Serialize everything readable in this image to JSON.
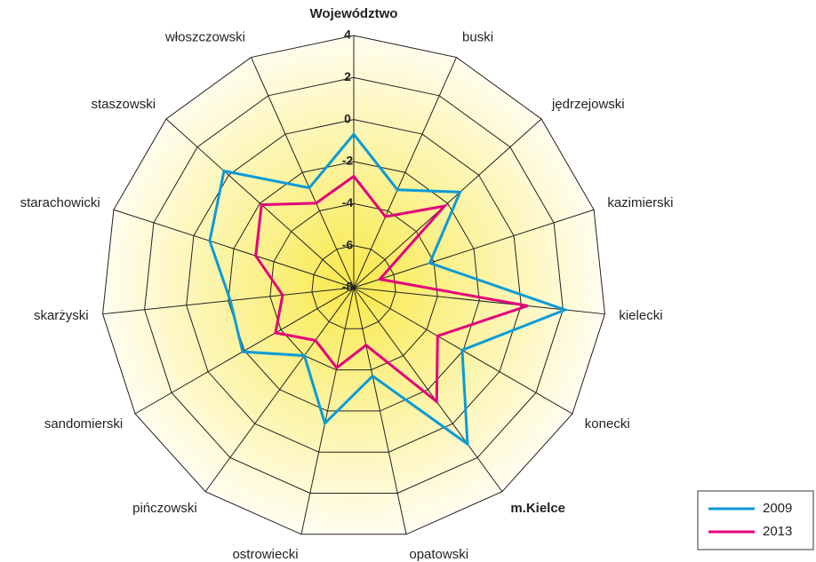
{
  "chart_data": {
    "type": "radar",
    "categories": [
      "Województwo",
      "buski",
      "jędrzejowski",
      "kazimierski",
      "kielecki",
      "konecki",
      "m.Kielce",
      "opatowski",
      "ostrowiecki",
      "pińczowski",
      "sandomierski",
      "skarżyski",
      "starachowicki",
      "staszowski",
      "włoszczowski"
    ],
    "series": [
      {
        "name": "2009",
        "color": "#0b9bd7",
        "values": [
          -0.7,
          -2.9,
          -1.2,
          -4.2,
          2.1,
          -2.05,
          1.2,
          -3.7,
          -1.4,
          -4.0,
          -1.9,
          -2.1,
          -0.8,
          0.3,
          -2.8
        ]
      },
      {
        "name": "2013",
        "color": "#e4007c",
        "values": [
          -2.7,
          -4.3,
          -2.2,
          -6.7,
          0.3,
          -3.4,
          -1.3,
          -5.2,
          -4.1,
          -4.9,
          -3.7,
          -4.6,
          -3.1,
          -2.1,
          -3.6
        ]
      }
    ],
    "ylim": [
      -8,
      4
    ],
    "yticks": [
      -8,
      -6,
      -4,
      -2,
      0,
      2,
      4
    ],
    "grid": true,
    "legend": "lower right"
  }
}
